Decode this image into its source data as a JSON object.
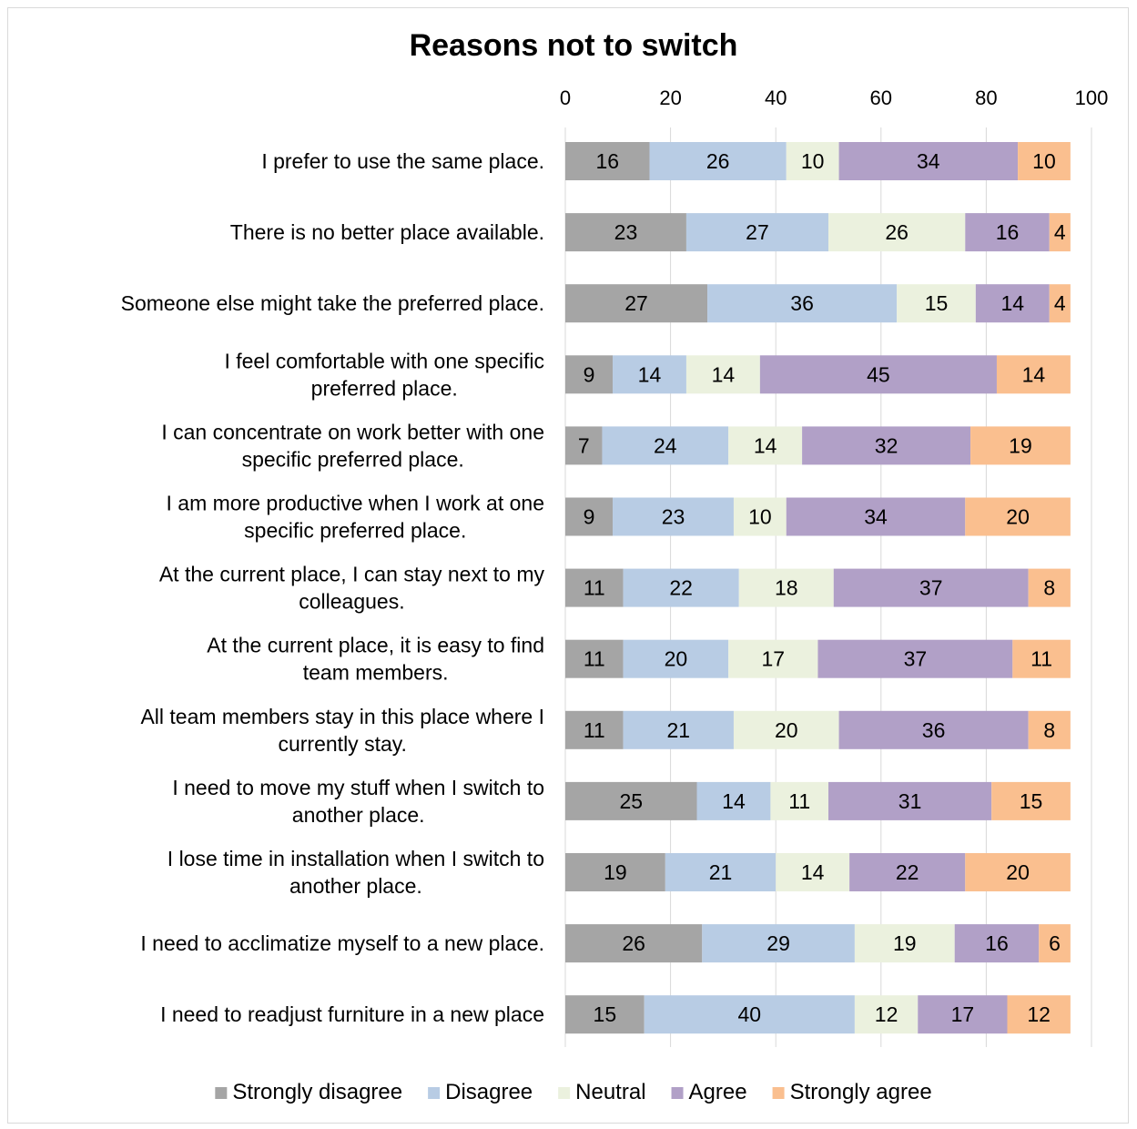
{
  "chart_data": {
    "type": "bar",
    "orientation": "horizontal",
    "stacked": true,
    "title": "Reasons not to switch",
    "xlim": [
      0,
      100
    ],
    "x_ticks": [
      "0",
      "20",
      "40",
      "60",
      "80",
      "100"
    ],
    "x_axis_position": "top",
    "grid": true,
    "legend_position": "bottom",
    "categories": [
      "I prefer to use the same place.",
      "There is no better place available.",
      "Someone else might take the preferred place.",
      "I feel comfortable with one specific preferred place.",
      "I can concentrate on work better with one specific preferred place.",
      "I am more productive when I work at one specific preferred place.",
      "At the current place, I can stay next to my colleagues.",
      "At the current place, it is easy to find team members.",
      "All team members stay in this place where I currently stay.",
      "I need to move my stuff when I switch to another place.",
      "I lose time in installation when I switch to another place.",
      "I need to acclimatize myself to a new place.",
      "I need to readjust furniture in a new place"
    ],
    "series": [
      {
        "name": "Strongly disagree",
        "color": "#a5a5a5",
        "values": [
          16,
          23,
          27,
          9,
          7,
          9,
          11,
          11,
          11,
          25,
          19,
          26,
          15
        ]
      },
      {
        "name": "Disagree",
        "color": "#b8cce4",
        "values": [
          26,
          27,
          36,
          14,
          24,
          23,
          22,
          20,
          21,
          14,
          21,
          29,
          40
        ]
      },
      {
        "name": "Neutral",
        "color": "#ebf1de",
        "values": [
          10,
          26,
          15,
          14,
          14,
          10,
          18,
          17,
          20,
          11,
          14,
          19,
          12
        ]
      },
      {
        "name": "Agree",
        "color": "#b1a0c7",
        "values": [
          34,
          16,
          14,
          45,
          32,
          34,
          37,
          37,
          36,
          31,
          22,
          16,
          17
        ]
      },
      {
        "name": "Strongly agree",
        "color": "#fabf8f",
        "values": [
          10,
          4,
          4,
          14,
          19,
          20,
          8,
          11,
          8,
          15,
          20,
          6,
          12
        ]
      }
    ]
  }
}
